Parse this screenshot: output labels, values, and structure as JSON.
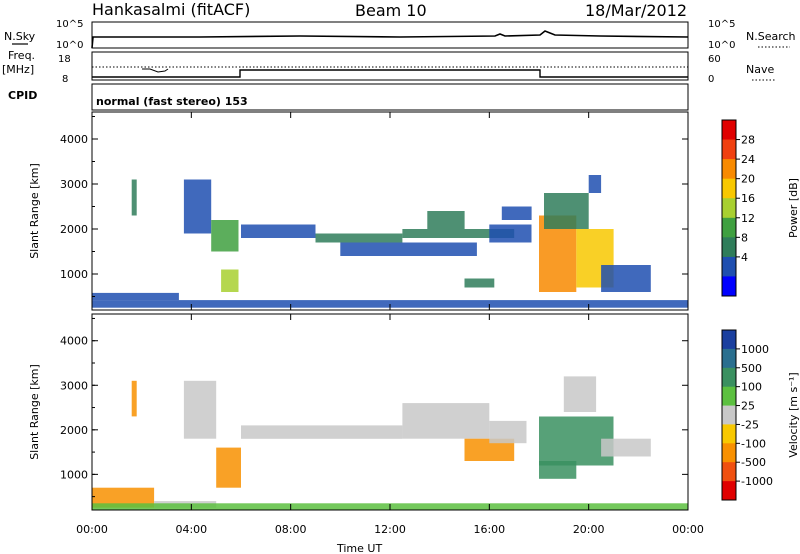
{
  "header": {
    "station": "Hankasalmi (fitACF)",
    "beam": "Beam 10",
    "date": "18/Mar/2012"
  },
  "sky_panel": {
    "label_left": "N.Sky",
    "label_right": "N.Search",
    "yticks_left": [
      "10^5",
      "10^0"
    ],
    "yticks_right": [
      "10^5",
      "10^0"
    ]
  },
  "freq_panel": {
    "label_freq": "Freq.",
    "label_unit": "[MHz]",
    "label_right": "Nave",
    "yticks_left": [
      "18",
      "8"
    ],
    "yticks_right": [
      "60",
      "0"
    ]
  },
  "cpid": {
    "label": "CPID",
    "text": "normal (fast stereo) 153"
  },
  "chart_data": [
    {
      "type": "heatmap",
      "name": "power",
      "ylabel": "Slant Range [km]",
      "ylim": [
        200,
        4600
      ],
      "yticks": [
        1000,
        2000,
        3000,
        4000
      ],
      "colorbar_label": "Power [dB]",
      "colorbar_ticks": [
        "28",
        "24",
        "20",
        "16",
        "12",
        "8",
        "4"
      ],
      "colors": [
        "#0000ff",
        "#1f4fb0",
        "#2f7d5a",
        "#3fa040",
        "#a8d030",
        "#f8c800",
        "#f88a00",
        "#f04010",
        "#e00000"
      ],
      "cells": [
        [
          0.0,
          24.0,
          250,
          420,
          6
        ],
        [
          0.0,
          3.5,
          420,
          580,
          5
        ],
        [
          1.6,
          1.8,
          2300,
          3100,
          8
        ],
        [
          3.7,
          4.8,
          1900,
          3100,
          6
        ],
        [
          4.8,
          5.9,
          1500,
          2200,
          12
        ],
        [
          5.2,
          5.9,
          600,
          1100,
          16
        ],
        [
          6.0,
          9.0,
          1800,
          2100,
          6
        ],
        [
          9.0,
          12.5,
          1700,
          1900,
          10
        ],
        [
          10.0,
          15.5,
          1400,
          1700,
          6
        ],
        [
          12.5,
          17.0,
          1800,
          2000,
          8
        ],
        [
          13.5,
          15.0,
          2000,
          2400,
          10
        ],
        [
          15.0,
          16.2,
          700,
          900,
          9
        ],
        [
          16.0,
          17.7,
          1700,
          2100,
          6
        ],
        [
          16.5,
          17.7,
          2200,
          2500,
          6
        ],
        [
          18.0,
          19.5,
          600,
          2300,
          24
        ],
        [
          19.5,
          21.0,
          700,
          2000,
          20
        ],
        [
          20.5,
          22.5,
          600,
          1200,
          6
        ],
        [
          18.2,
          20.0,
          2000,
          2800,
          8
        ],
        [
          20.0,
          20.5,
          2800,
          3200,
          6
        ]
      ]
    },
    {
      "type": "heatmap",
      "name": "velocity",
      "ylabel": "Slant Range [km]",
      "ylim": [
        200,
        4600
      ],
      "yticks": [
        1000,
        2000,
        3000,
        4000
      ],
      "colorbar_label": "Velocity [m s⁻¹]",
      "colorbar_ticks": [
        "1000",
        "500",
        "100",
        "25",
        "-25",
        "-100",
        "-500",
        "-1000"
      ],
      "colors": [
        "#1a3f9f",
        "#2a6f8f",
        "#3a9060",
        "#5cc040",
        "#c8c8c8",
        "#f8c800",
        "#f89000",
        "#f05010",
        "#e00000"
      ],
      "cells": [
        [
          0.0,
          2.5,
          250,
          700,
          -150
        ],
        [
          2.5,
          5.0,
          250,
          400,
          10
        ],
        [
          1.6,
          1.8,
          2300,
          3100,
          -300
        ],
        [
          3.7,
          5.0,
          1800,
          3100,
          0
        ],
        [
          5.0,
          6.0,
          700,
          1600,
          -150
        ],
        [
          6.0,
          12.5,
          1800,
          2100,
          0
        ],
        [
          12.5,
          16.0,
          1800,
          2600,
          0
        ],
        [
          15.0,
          17.0,
          1300,
          1800,
          -150
        ],
        [
          16.0,
          17.5,
          1700,
          2200,
          0
        ],
        [
          18.0,
          21.0,
          1200,
          2300,
          300
        ],
        [
          18.0,
          19.5,
          900,
          1300,
          200
        ],
        [
          19.0,
          20.3,
          2400,
          3200,
          0
        ],
        [
          20.5,
          22.5,
          1400,
          1800,
          0
        ],
        [
          0.0,
          24.0,
          200,
          350,
          50
        ]
      ]
    },
    {
      "type": "table",
      "name": "time-axis",
      "xlabel": "Time UT",
      "xticks": [
        "00:00",
        "04:00",
        "08:00",
        "12:00",
        "16:00",
        "20:00",
        "00:00"
      ],
      "xlim": [
        0,
        24
      ]
    }
  ]
}
